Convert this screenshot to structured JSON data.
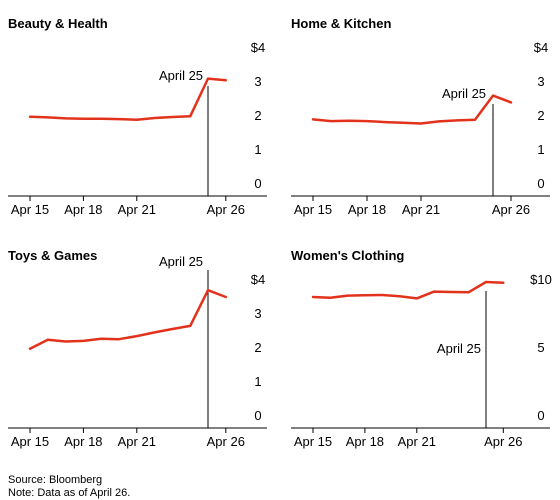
{
  "chart_data": [
    {
      "type": "line",
      "title": "Beauty & Health",
      "x": [
        "Apr 15",
        "Apr 16",
        "Apr 17",
        "Apr 18",
        "Apr 19",
        "Apr 20",
        "Apr 21",
        "Apr 22",
        "Apr 23",
        "Apr 24",
        "Apr 25",
        "Apr 26"
      ],
      "xticks": [
        "Apr 15",
        "Apr 18",
        "Apr 21",
        "Apr 26"
      ],
      "series": [
        {
          "values": [
            1.98,
            1.96,
            1.93,
            1.92,
            1.92,
            1.91,
            1.89,
            1.94,
            1.97,
            1.99,
            3.1,
            3.05
          ]
        }
      ],
      "ylim": [
        0,
        4
      ],
      "yticks": [
        "0",
        "1",
        "2",
        "3",
        "$4"
      ],
      "annotation": {
        "x": "Apr 25",
        "text": "April 25"
      },
      "grid": false,
      "color": "#e3321c"
    },
    {
      "type": "line",
      "title": "Home & Kitchen",
      "x": [
        "Apr 15",
        "Apr 16",
        "Apr 17",
        "Apr 18",
        "Apr 19",
        "Apr 20",
        "Apr 21",
        "Apr 22",
        "Apr 23",
        "Apr 24",
        "Apr 25",
        "Apr 26"
      ],
      "xticks": [
        "Apr 15",
        "Apr 18",
        "Apr 21",
        "Apr 26"
      ],
      "series": [
        {
          "values": [
            1.9,
            1.85,
            1.86,
            1.85,
            1.82,
            1.8,
            1.78,
            1.84,
            1.87,
            1.89,
            2.6,
            2.4
          ]
        }
      ],
      "ylim": [
        0,
        4
      ],
      "yticks": [
        "0",
        "1",
        "2",
        "3",
        "$4"
      ],
      "annotation": {
        "x": "Apr 25",
        "text": "April 25"
      },
      "grid": false,
      "color": "#e3321c"
    },
    {
      "type": "line",
      "title": "Toys & Games",
      "x": [
        "Apr 15",
        "Apr 16",
        "Apr 17",
        "Apr 18",
        "Apr 19",
        "Apr 20",
        "Apr 21",
        "Apr 22",
        "Apr 23",
        "Apr 24",
        "Apr 25",
        "Apr 26"
      ],
      "xticks": [
        "Apr 15",
        "Apr 18",
        "Apr 21",
        "Apr 26"
      ],
      "series": [
        {
          "values": [
            1.98,
            2.24,
            2.19,
            2.21,
            2.27,
            2.26,
            2.35,
            2.46,
            2.56,
            2.65,
            3.7,
            3.5
          ]
        }
      ],
      "ylim": [
        0,
        4
      ],
      "yticks": [
        "0",
        "1",
        "2",
        "3",
        "$4"
      ],
      "annotation": {
        "x": "Apr 25",
        "text": "April 25"
      },
      "grid": false,
      "color": "#e3321c"
    },
    {
      "type": "line",
      "title": "Women's Clothing",
      "x": [
        "Apr 15",
        "Apr 16",
        "Apr 17",
        "Apr 18",
        "Apr 19",
        "Apr 20",
        "Apr 21",
        "Apr 22",
        "Apr 23",
        "Apr 24",
        "Apr 25",
        "Apr 26"
      ],
      "xticks": [
        "Apr 15",
        "Apr 18",
        "Apr 21",
        "Apr 26"
      ],
      "series": [
        {
          "values": [
            8.75,
            8.7,
            8.85,
            8.88,
            8.9,
            8.8,
            8.65,
            9.15,
            9.12,
            9.1,
            9.85,
            9.8
          ]
        }
      ],
      "ylim": [
        0,
        10
      ],
      "yticks": [
        "0",
        "5",
        "$10"
      ],
      "annotation": {
        "x": "Apr 25",
        "text": "April 25"
      },
      "grid": false,
      "color": "#e3321c"
    }
  ],
  "footer": {
    "source": "Source: Bloomberg",
    "note": "Note: Data as of April 26."
  }
}
